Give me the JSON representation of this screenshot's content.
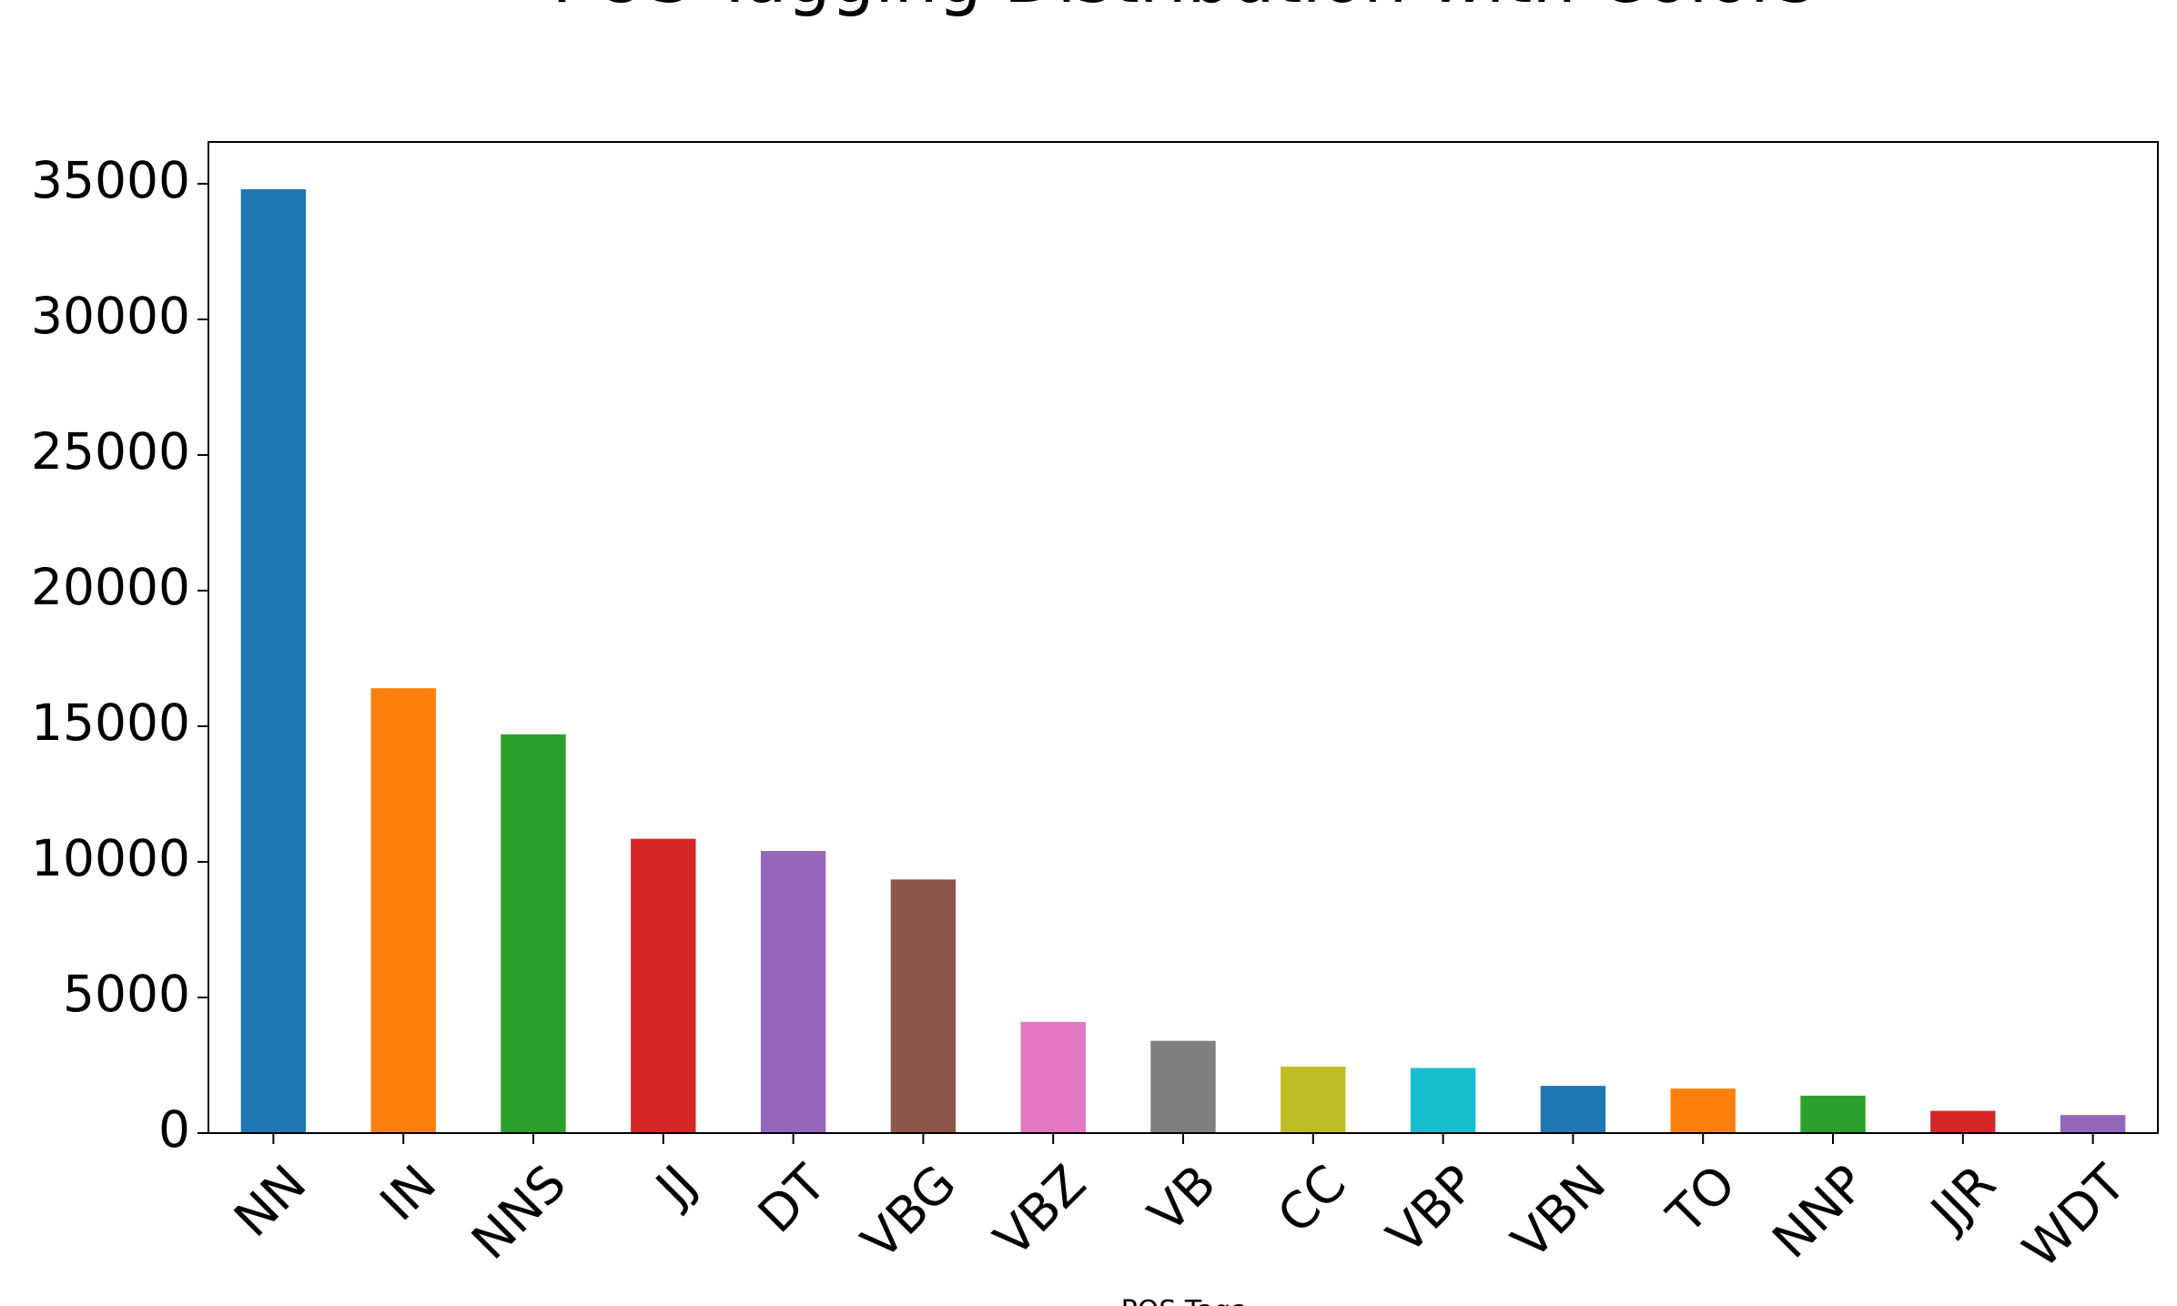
{
  "chart_data": {
    "type": "bar",
    "title": "POS Tagging Distribution with Colors",
    "x_label": "POS Tags",
    "categories": [
      "NN",
      "IN",
      "NNS",
      "JJ",
      "DT",
      "VBG",
      "VBZ",
      "VB",
      "CC",
      "VBP",
      "VBN",
      "TO",
      "NNP",
      "JJR",
      "WDT"
    ],
    "values": [
      34800,
      16400,
      14700,
      10850,
      10400,
      9350,
      4100,
      3400,
      2450,
      2400,
      1740,
      1640,
      1380,
      820,
      665
    ],
    "colors": [
      "#1f77b4",
      "#ff7f0e",
      "#2ca02c",
      "#d62728",
      "#9467bd",
      "#8c564b",
      "#e377c2",
      "#7f7f7f",
      "#bcbd22",
      "#17becf",
      "#1f77b4",
      "#ff7f0e",
      "#2ca02c",
      "#d62728",
      "#9467bd"
    ],
    "ylim": [
      0,
      36540
    ],
    "yticks": [
      0,
      5000,
      10000,
      15000,
      20000,
      25000,
      30000,
      35000
    ],
    "grid": false
  }
}
